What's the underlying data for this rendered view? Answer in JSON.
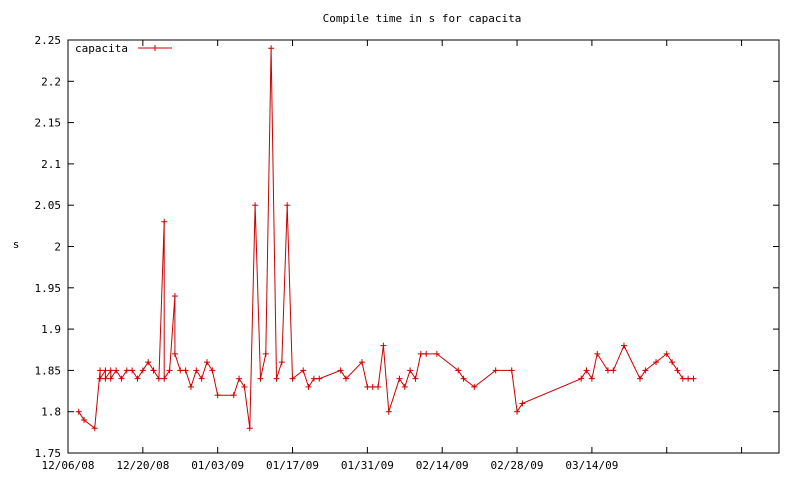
{
  "chart_data": {
    "type": "line",
    "title": "Compile time in s for capacita",
    "xlabel": "",
    "ylabel": "s",
    "x_axis_type": "date",
    "xlim": [
      "2008-12-06",
      "2009-04-18"
    ],
    "ylim": [
      1.75,
      2.25
    ],
    "x_ticks": [
      {
        "date": "2008-12-06",
        "label": "12/06/08"
      },
      {
        "date": "2008-12-20",
        "label": "12/20/08"
      },
      {
        "date": "2009-01-03",
        "label": "01/03/09"
      },
      {
        "date": "2009-01-17",
        "label": "01/17/09"
      },
      {
        "date": "2009-01-31",
        "label": "01/31/09"
      },
      {
        "date": "2009-02-14",
        "label": "02/14/09"
      },
      {
        "date": "2009-02-28",
        "label": "02/28/09"
      },
      {
        "date": "2009-03-14",
        "label": "03/14/09"
      },
      {
        "date": "2009-03-28",
        "label": ""
      },
      {
        "date": "2009-04-11",
        "label": ""
      }
    ],
    "y_ticks": [
      {
        "value": 1.75,
        "label": "1.75"
      },
      {
        "value": 1.8,
        "label": "1.8"
      },
      {
        "value": 1.85,
        "label": "1.85"
      },
      {
        "value": 1.9,
        "label": "1.9"
      },
      {
        "value": 1.95,
        "label": "1.95"
      },
      {
        "value": 2.0,
        "label": "2"
      },
      {
        "value": 2.05,
        "label": "2.05"
      },
      {
        "value": 2.1,
        "label": "2.1"
      },
      {
        "value": 2.15,
        "label": "2.15"
      },
      {
        "value": 2.2,
        "label": "2.2"
      },
      {
        "value": 2.25,
        "label": "2.25"
      }
    ],
    "grid": false,
    "legend_position": "top-left",
    "series": [
      {
        "name": "capacita",
        "color": "#cc0000",
        "marker": "plus",
        "x": [
          "2008-12-08",
          "2008-12-09",
          "2008-12-11",
          "2008-12-12",
          "2008-12-12",
          "2008-12-13",
          "2008-12-13",
          "2008-12-14",
          "2008-12-14",
          "2008-12-15",
          "2008-12-16",
          "2008-12-17",
          "2008-12-18",
          "2008-12-19",
          "2008-12-20",
          "2008-12-21",
          "2008-12-22",
          "2008-12-22",
          "2008-12-23",
          "2008-12-24",
          "2008-12-24",
          "2008-12-25",
          "2008-12-26",
          "2008-12-26",
          "2008-12-27",
          "2008-12-28",
          "2008-12-29",
          "2008-12-30",
          "2008-12-31",
          "2009-01-01",
          "2009-01-02",
          "2009-01-03",
          "2009-01-06",
          "2009-01-07",
          "2009-01-08",
          "2009-01-09",
          "2009-01-10",
          "2009-01-11",
          "2009-01-12",
          "2009-01-13",
          "2009-01-14",
          "2009-01-15",
          "2009-01-16",
          "2009-01-17",
          "2009-01-19",
          "2009-01-20",
          "2009-01-21",
          "2009-01-22",
          "2009-01-26",
          "2009-01-27",
          "2009-01-30",
          "2009-01-31",
          "2009-02-01",
          "2009-02-02",
          "2009-02-03",
          "2009-02-04",
          "2009-02-06",
          "2009-02-07",
          "2009-02-08",
          "2009-02-09",
          "2009-02-10",
          "2009-02-11",
          "2009-02-13",
          "2009-02-17",
          "2009-02-18",
          "2009-02-20",
          "2009-02-24",
          "2009-02-27",
          "2009-02-28",
          "2009-03-01",
          "2009-03-12",
          "2009-03-13",
          "2009-03-14",
          "2009-03-15",
          "2009-03-17",
          "2009-03-18",
          "2009-03-20",
          "2009-03-23",
          "2009-03-24",
          "2009-03-26",
          "2009-03-28",
          "2009-03-29",
          "2009-03-30",
          "2009-03-31",
          "2009-04-01",
          "2009-04-02"
        ],
        "y": [
          1.8,
          1.79,
          1.78,
          1.85,
          1.84,
          1.85,
          1.84,
          1.85,
          1.84,
          1.85,
          1.84,
          1.85,
          1.85,
          1.84,
          1.85,
          1.86,
          1.85,
          1.85,
          1.84,
          2.03,
          1.84,
          1.85,
          1.94,
          1.87,
          1.85,
          1.85,
          1.83,
          1.85,
          1.84,
          1.86,
          1.85,
          1.82,
          1.82,
          1.84,
          1.83,
          1.78,
          2.05,
          1.84,
          1.87,
          2.24,
          1.84,
          1.86,
          2.05,
          1.84,
          1.85,
          1.83,
          1.84,
          1.84,
          1.85,
          1.84,
          1.86,
          1.83,
          1.83,
          1.83,
          1.88,
          1.8,
          1.84,
          1.83,
          1.85,
          1.84,
          1.87,
          1.87,
          1.87,
          1.85,
          1.84,
          1.83,
          1.85,
          1.85,
          1.8,
          1.81,
          1.84,
          1.85,
          1.84,
          1.87,
          1.85,
          1.85,
          1.88,
          1.84,
          1.85,
          1.86,
          1.87,
          1.86,
          1.85,
          1.84,
          1.84,
          1.84
        ]
      }
    ]
  }
}
